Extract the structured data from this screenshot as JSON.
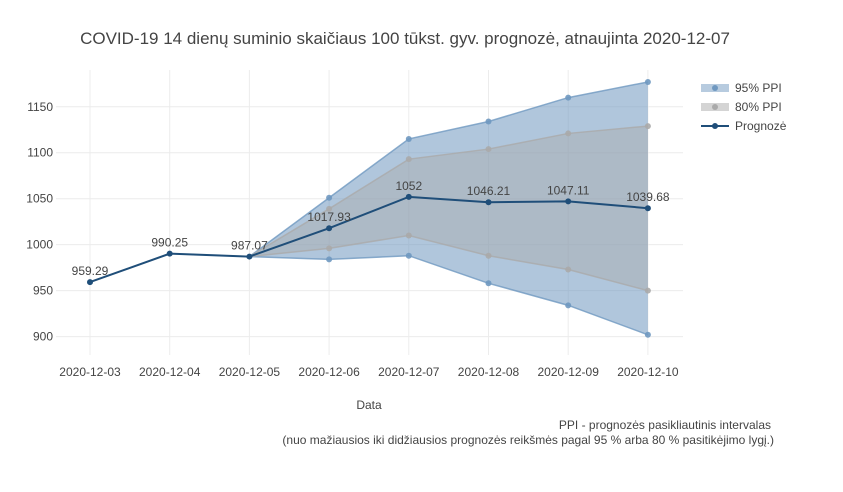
{
  "chart_data": {
    "type": "line",
    "title": "COVID-19 14 dienų suminio skaičiaus 100 tūkst. gyv. prognozė, atnaujinta 2020-12-07",
    "xlabel": "Data",
    "ylabel": "",
    "categories": [
      "2020-12-03",
      "2020-12-04",
      "2020-12-05",
      "2020-12-06",
      "2020-12-07",
      "2020-12-08",
      "2020-12-09",
      "2020-12-10"
    ],
    "ylim": [
      880,
      1190
    ],
    "yticks": [
      900,
      950,
      1000,
      1050,
      1100,
      1150
    ],
    "grid": true,
    "legend_position": "top-right",
    "series": [
      {
        "name": "Prognozė",
        "color": "#1f4e79",
        "values": [
          959.29,
          990.25,
          987.07,
          1017.93,
          1052,
          1046.21,
          1047.11,
          1039.68
        ],
        "labels": [
          "959.29",
          "990.25",
          "987.07",
          "1017.93",
          "1052",
          "1046.21",
          "1047.11",
          "1039.68"
        ]
      }
    ],
    "bands": [
      {
        "name": "95% PPI",
        "color": "#6f98c0",
        "start_index": 2,
        "upper": [
          987.07,
          1051,
          1115,
          1134,
          1160,
          1177
        ],
        "lower": [
          987.07,
          984,
          988,
          958,
          934,
          902
        ]
      },
      {
        "name": "80% PPI",
        "color": "#aaaaaa",
        "start_index": 2,
        "upper": [
          987.07,
          1039,
          1093,
          1104,
          1121,
          1129
        ],
        "lower": [
          987.07,
          996,
          1010,
          988,
          973,
          950
        ]
      }
    ],
    "legend": [
      "95% PPI",
      "80% PPI",
      "Prognozė"
    ],
    "notes": [
      "PPI - prognozės pasikliautinis intervalas",
      "(nuo mažiausios iki didžiausios prognozės reikšmės pagal 95 % arba 80 % pasitikėjimo lygį.)"
    ]
  }
}
